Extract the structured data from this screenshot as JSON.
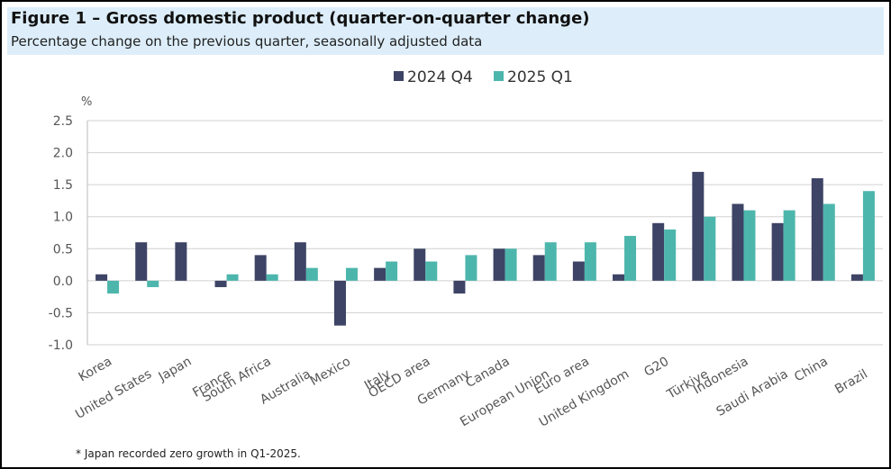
{
  "chart_data": {
    "type": "bar",
    "title": "Figure 1 – Gross domestic product (quarter-on-quarter change)",
    "subtitle": "Percentage change on the previous quarter, seasonally adjusted data",
    "y_label": "%",
    "categories": [
      "Korea",
      "United States",
      "Japan",
      "France",
      "South Africa",
      "Australia",
      "Mexico",
      "Italy",
      "OECD area",
      "Germany",
      "Canada",
      "European Union",
      "Euro area",
      "United Kingdom",
      "G20",
      "Türkiye",
      "Indonesia",
      "Saudi Arabia",
      "China",
      "Brazil"
    ],
    "series": [
      {
        "name": "2024 Q4",
        "color": "#3d4466",
        "values": [
          0.1,
          0.6,
          0.6,
          -0.1,
          0.4,
          0.6,
          -0.7,
          0.2,
          0.5,
          -0.2,
          0.5,
          0.4,
          0.3,
          0.1,
          0.9,
          1.7,
          1.2,
          0.9,
          1.6,
          0.1
        ]
      },
      {
        "name": "2025 Q1",
        "color": "#4db6ac",
        "values": [
          -0.2,
          -0.1,
          0,
          0.1,
          0.1,
          0.2,
          0.2,
          0.3,
          0.3,
          0.4,
          0.5,
          0.6,
          0.6,
          0.7,
          0.8,
          1.0,
          1.1,
          1.1,
          1.2,
          1.4
        ]
      }
    ],
    "ylim": [
      -1,
      2.5
    ],
    "yticks": [
      {
        "value": -1,
        "label": "-1.0"
      },
      -0.5,
      {
        "value": 0,
        "label": "0.0"
      },
      0.5,
      {
        "value": 1,
        "label": "1.0"
      },
      1.5,
      {
        "value": 2,
        "label": "2.0"
      },
      2.5
    ],
    "grid": true,
    "legend": "top",
    "footnote": "* Japan recorded zero growth in Q1-2025."
  }
}
